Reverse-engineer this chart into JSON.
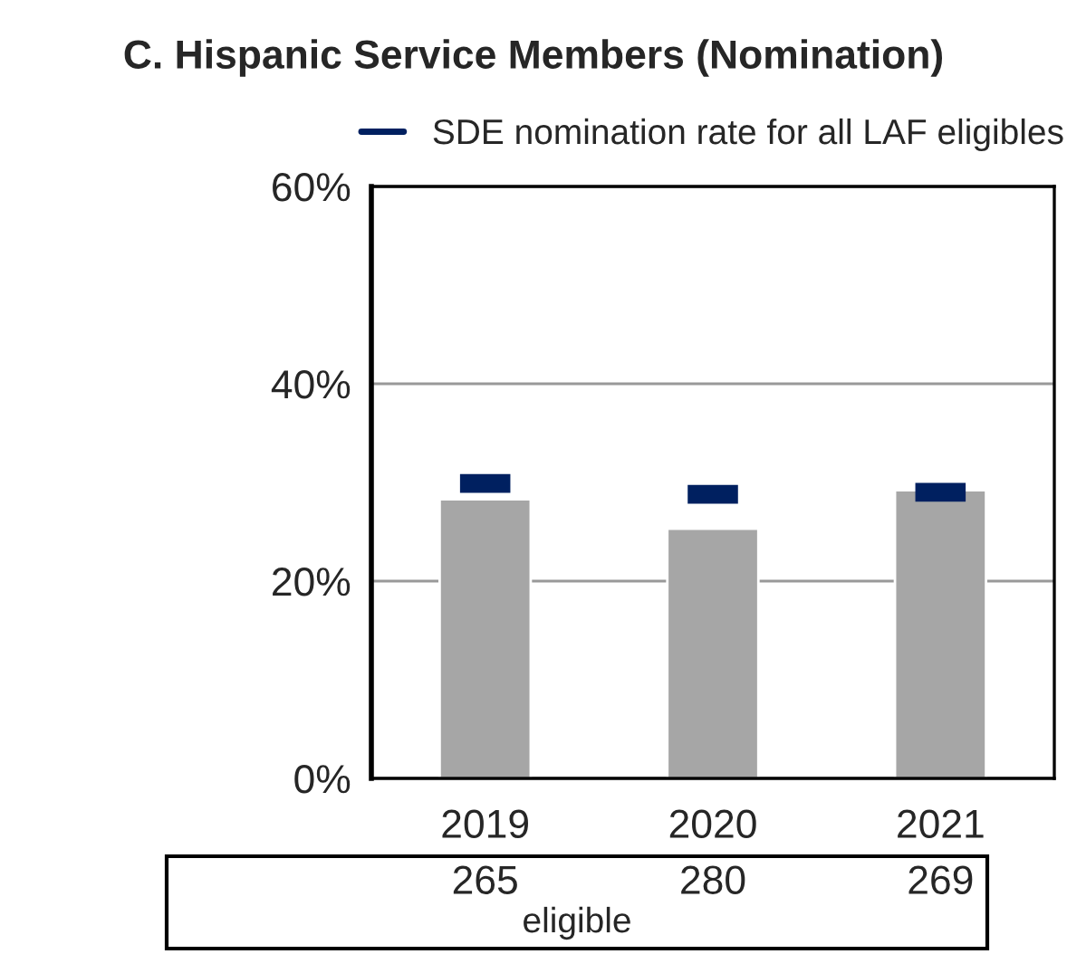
{
  "chart_data": {
    "type": "bar",
    "title": "C. Hispanic Service Members (Nomination)",
    "categories": [
      "2019",
      "2020",
      "2021"
    ],
    "series": [
      {
        "color": "#a6a6a6",
        "values": [
          28.3,
          25.3,
          29.2
        ]
      },
      {
        "type": "scatter",
        "name": "SDE nomination rate for all LAF eligibles",
        "color": "#002060",
        "values": [
          29.9,
          28.8,
          29.0
        ]
      }
    ],
    "ylim": [
      0,
      60
    ],
    "yticks": [
      {
        "value": 0,
        "label": "0%"
      },
      {
        "value": 20,
        "label": "20%"
      },
      {
        "value": 40,
        "label": "40%"
      },
      {
        "value": 60,
        "label": "60%"
      }
    ],
    "grid": "y",
    "legend": "top",
    "annotations": [
      "265",
      "280",
      "269",
      "eligible"
    ]
  }
}
